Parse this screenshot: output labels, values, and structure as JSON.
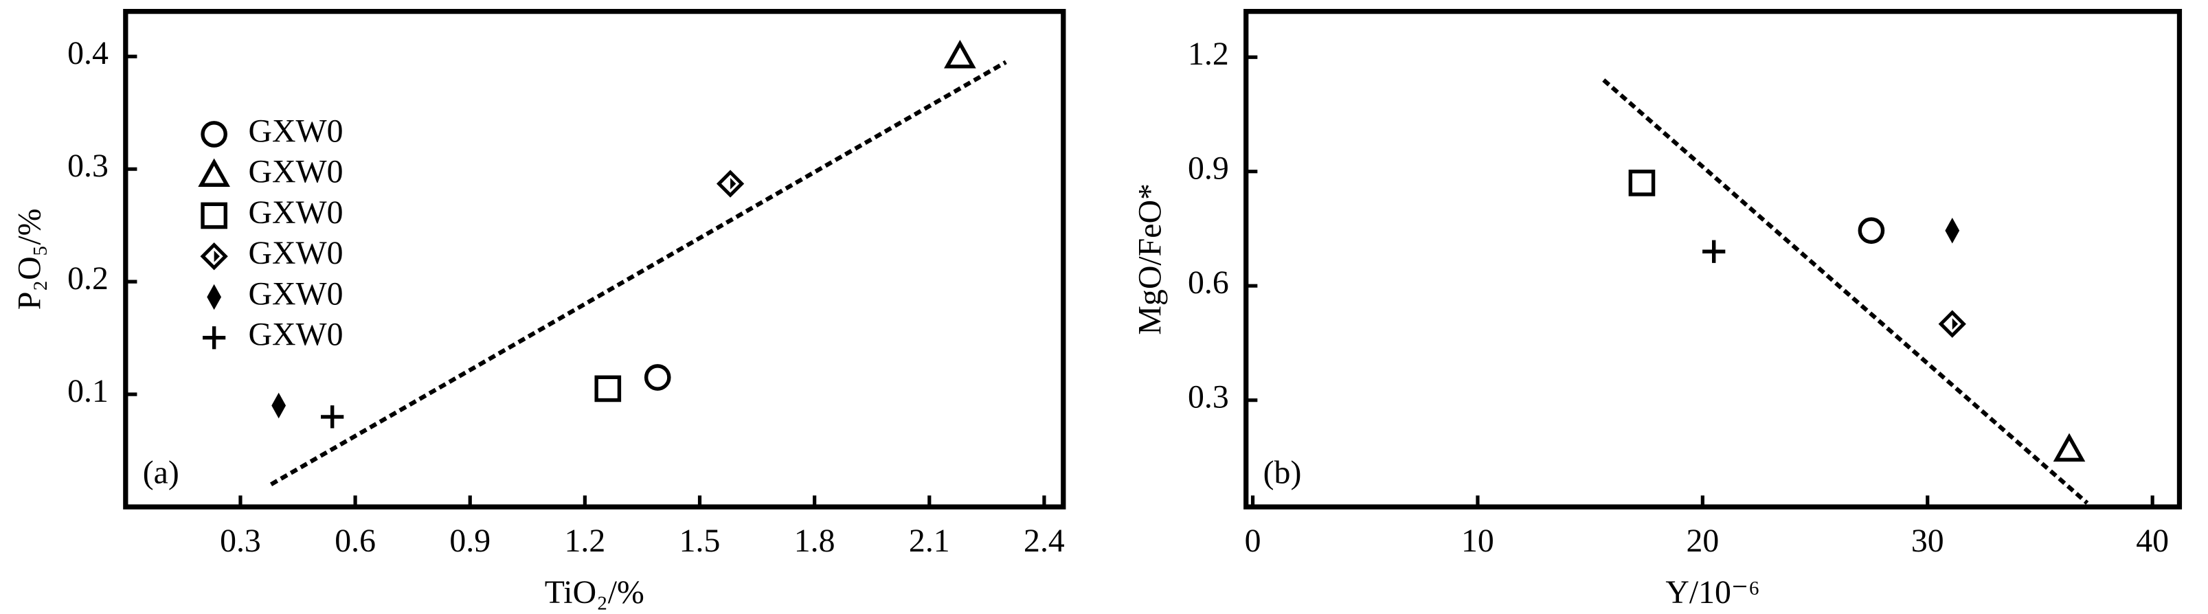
{
  "chart_data": [
    {
      "type": "scatter",
      "panel_label": "(a)",
      "xlabel": "TiO₂/%",
      "ylabel": "P₂O₅/%",
      "xlim": [
        0,
        2.45
      ],
      "ylim": [
        0,
        0.44
      ],
      "xticks": [
        0.3,
        0.6,
        0.9,
        1.2,
        1.5,
        1.8,
        2.1,
        2.4
      ],
      "yticks": [
        0.1,
        0.2,
        0.3,
        0.4
      ],
      "legend": "upper left",
      "color": "#000000",
      "series": [
        {
          "name": "GXW0",
          "marker": "circle",
          "x": [
            1.39
          ],
          "y": [
            0.115
          ]
        },
        {
          "name": "GXW0",
          "marker": "triangle",
          "x": [
            2.18
          ],
          "y": [
            0.4
          ]
        },
        {
          "name": "GXW0",
          "marker": "square",
          "x": [
            1.26
          ],
          "y": [
            0.105
          ]
        },
        {
          "name": "GXW0",
          "marker": "diamond",
          "x": [
            1.58
          ],
          "y": [
            0.287
          ]
        },
        {
          "name": "GXW0",
          "marker": "filled-diamond",
          "x": [
            0.4
          ],
          "y": [
            0.09
          ]
        },
        {
          "name": "GXW0",
          "marker": "plus",
          "x": [
            0.54
          ],
          "y": [
            0.08
          ]
        },
        {
          "marker": "dashed-line",
          "x": [
            0.38,
            2.3
          ],
          "y": [
            0.02,
            0.395
          ]
        }
      ]
    },
    {
      "type": "scatter",
      "panel_label": "(b)",
      "xlabel": "Y/10⁻⁶",
      "ylabel": "MgO/FeO*",
      "xlim": [
        -0.3,
        41.2
      ],
      "ylim": [
        0.02,
        1.32
      ],
      "xticks": [
        0,
        10,
        20,
        30,
        40
      ],
      "yticks": [
        0.3,
        0.6,
        0.9,
        1.2
      ],
      "color": "#000000",
      "series": [
        {
          "marker": "square",
          "x": [
            17.3
          ],
          "y": [
            0.87
          ]
        },
        {
          "marker": "plus",
          "x": [
            20.5
          ],
          "y": [
            0.69
          ]
        },
        {
          "marker": "circle",
          "x": [
            27.5
          ],
          "y": [
            0.745
          ]
        },
        {
          "marker": "filled-diamond",
          "x": [
            31.1
          ],
          "y": [
            0.745
          ]
        },
        {
          "marker": "diamond",
          "x": [
            31.1
          ],
          "y": [
            0.5
          ]
        },
        {
          "marker": "triangle",
          "x": [
            36.3
          ],
          "y": [
            0.17
          ]
        },
        {
          "marker": "dashed-line",
          "x": [
            15.6,
            37.1
          ],
          "y": [
            1.14,
            0.03
          ]
        }
      ]
    }
  ]
}
